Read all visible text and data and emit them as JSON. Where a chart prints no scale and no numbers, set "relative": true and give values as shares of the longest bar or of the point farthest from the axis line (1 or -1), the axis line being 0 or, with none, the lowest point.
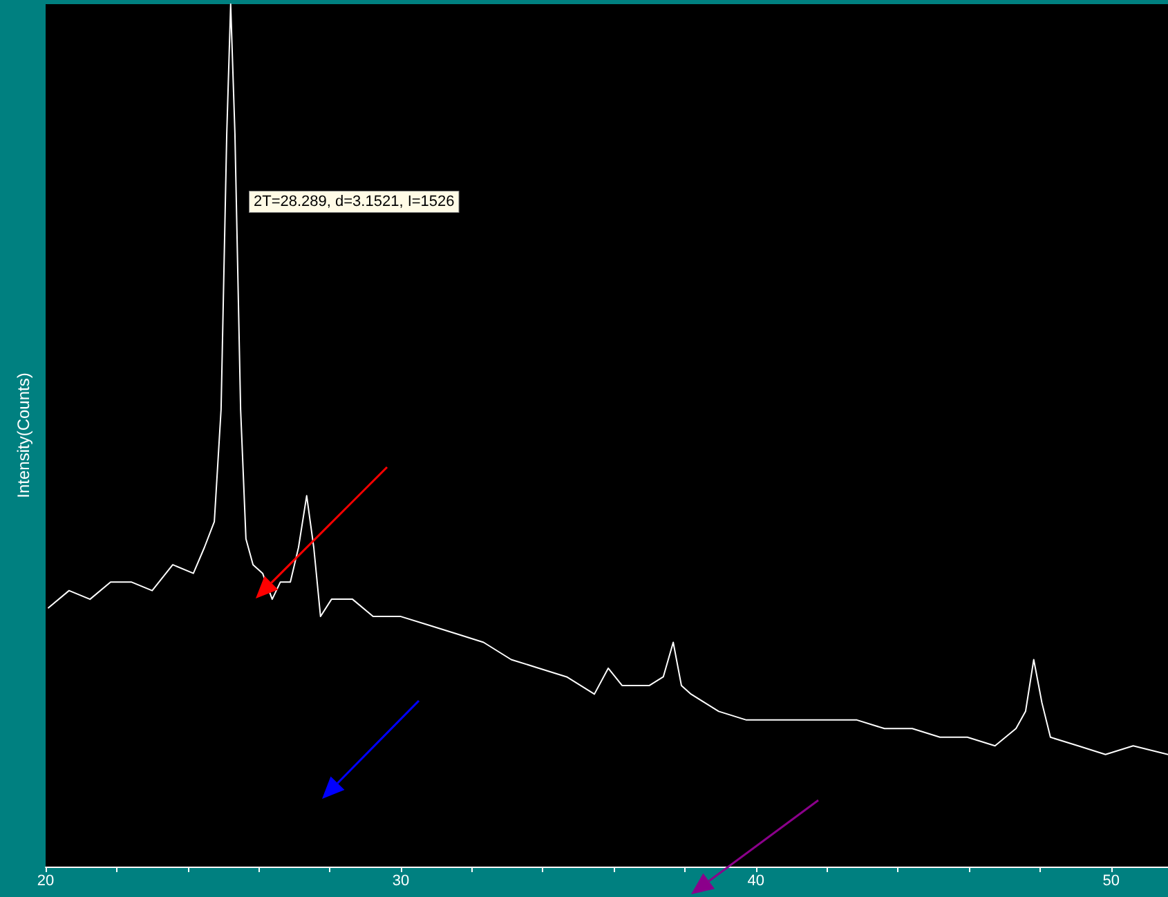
{
  "chart_data": {
    "type": "line",
    "relative": true,
    "ylabel": "Intensity(Counts)",
    "annotations": [
      "2T=28.289, d=3.1521, I=1526"
    ],
    "xlim": [
      20,
      51.6
    ],
    "xticks": [
      20,
      {
        "value": 22,
        "label": null
      },
      {
        "value": 24,
        "label": null
      },
      {
        "value": 26,
        "label": null
      },
      {
        "value": 28,
        "label": null
      },
      30,
      {
        "value": 32,
        "label": null
      },
      {
        "value": 34,
        "label": null
      },
      {
        "value": 36,
        "label": null
      },
      {
        "value": 38,
        "label": null
      },
      40,
      {
        "value": 42,
        "label": null
      },
      {
        "value": 44,
        "label": null
      },
      {
        "value": 46,
        "label": null
      },
      {
        "value": 48,
        "label": null
      },
      50
    ],
    "grid": false,
    "marker": "none",
    "line_style": "solid",
    "series": [
      {
        "color": "#ffffff",
        "x": [
          20.08,
          20.66,
          21.25,
          21.83,
          22.41,
          23.0,
          23.58,
          24.16,
          24.47,
          24.75,
          24.94,
          25.1,
          25.21,
          25.33,
          25.49,
          25.64,
          25.84,
          26.11,
          26.38,
          26.61,
          26.89,
          27.12,
          27.35,
          27.55,
          27.74,
          28.05,
          28.64,
          29.22,
          30.0,
          30.78,
          31.56,
          32.33,
          33.11,
          33.89,
          34.67,
          35.45,
          35.84,
          36.23,
          37.0,
          37.39,
          37.67,
          37.9,
          38.17,
          38.95,
          39.73,
          40.51,
          41.28,
          42.06,
          42.84,
          43.62,
          44.4,
          45.18,
          45.95,
          46.73,
          47.32,
          47.59,
          47.82,
          48.05,
          48.29,
          49.07,
          49.84,
          50.62,
          51.6
        ],
        "values": [
          0.3,
          0.32,
          0.31,
          0.33,
          0.33,
          0.32,
          0.35,
          0.34,
          0.37,
          0.4,
          0.53,
          0.85,
          1,
          0.85,
          0.53,
          0.38,
          0.35,
          0.34,
          0.31,
          0.33,
          0.33,
          0.37,
          0.43,
          0.37,
          0.29,
          0.31,
          0.31,
          0.29,
          0.29,
          0.28,
          0.27,
          0.26,
          0.24,
          0.23,
          0.22,
          0.2,
          0.23,
          0.21,
          0.21,
          0.22,
          0.26,
          0.21,
          0.2,
          0.18,
          0.17,
          0.17,
          0.17,
          0.17,
          0.17,
          0.16,
          0.16,
          0.15,
          0.15,
          0.14,
          0.16,
          0.18,
          0.24,
          0.19,
          0.15,
          0.14,
          0.13,
          0.14,
          0.13
        ]
      }
    ]
  }
}
